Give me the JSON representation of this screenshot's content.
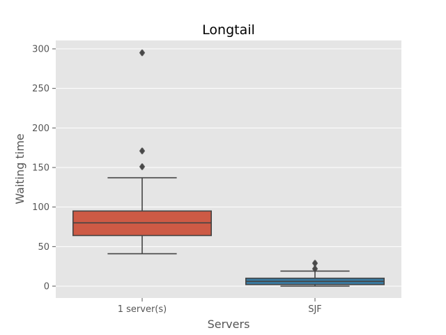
{
  "chart_data": {
    "type": "box",
    "title": "Longtail",
    "xlabel": "Servers",
    "ylabel": "Waiting time",
    "ylim": [
      -14,
      310
    ],
    "yticks": [
      0,
      50,
      100,
      150,
      200,
      250,
      300
    ],
    "categories": [
      "1 server(s)",
      "SJF"
    ],
    "boxes": [
      {
        "category": "1 server(s)",
        "whisker_low": 41,
        "q1": 64,
        "median": 80,
        "q3": 95,
        "whisker_high": 137,
        "outliers": [
          151,
          151,
          171,
          171,
          295,
          295
        ]
      },
      {
        "category": "SJF",
        "whisker_low": 0,
        "q1": 2,
        "median": 6,
        "q3": 10,
        "whisker_high": 19,
        "outliers": [
          22,
          22,
          29,
          29
        ]
      }
    ],
    "grid": true,
    "colors": {
      "background": "#e5e5e5",
      "grid": "#ffffff",
      "box_1": "#cd5a45",
      "box_2": "#3a7aa0",
      "lines": "#444444",
      "outlier": "#444444"
    }
  }
}
